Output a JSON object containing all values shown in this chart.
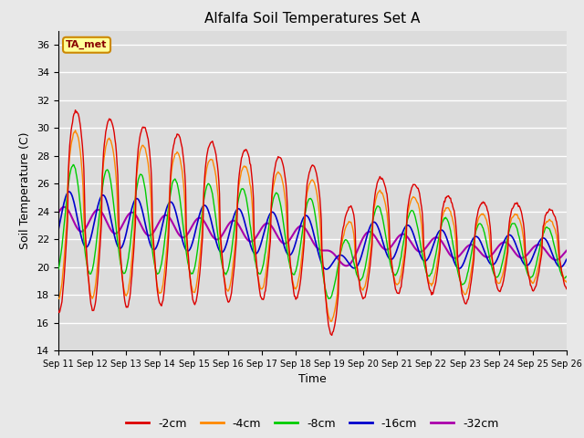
{
  "title": "Alfalfa Soil Temperatures Set A",
  "xlabel": "Time",
  "ylabel": "Soil Temperature (C)",
  "ylim": [
    14,
    37
  ],
  "yticks": [
    14,
    16,
    18,
    20,
    22,
    24,
    26,
    28,
    30,
    32,
    34,
    36
  ],
  "background_color": "#e8e8e8",
  "plot_bg_color": "#dcdcdc",
  "legend_labels": [
    "-2cm",
    "-4cm",
    "-8cm",
    "-16cm",
    "-32cm"
  ],
  "legend_colors": [
    "#dd0000",
    "#ff8800",
    "#00cc00",
    "#0000cc",
    "#aa00aa"
  ],
  "ta_met_label": "TA_met",
  "ta_met_color": "#880000",
  "ta_met_bg": "#ffff99",
  "ta_met_border": "#cc8800",
  "n_days": 15,
  "day_start": 11
}
